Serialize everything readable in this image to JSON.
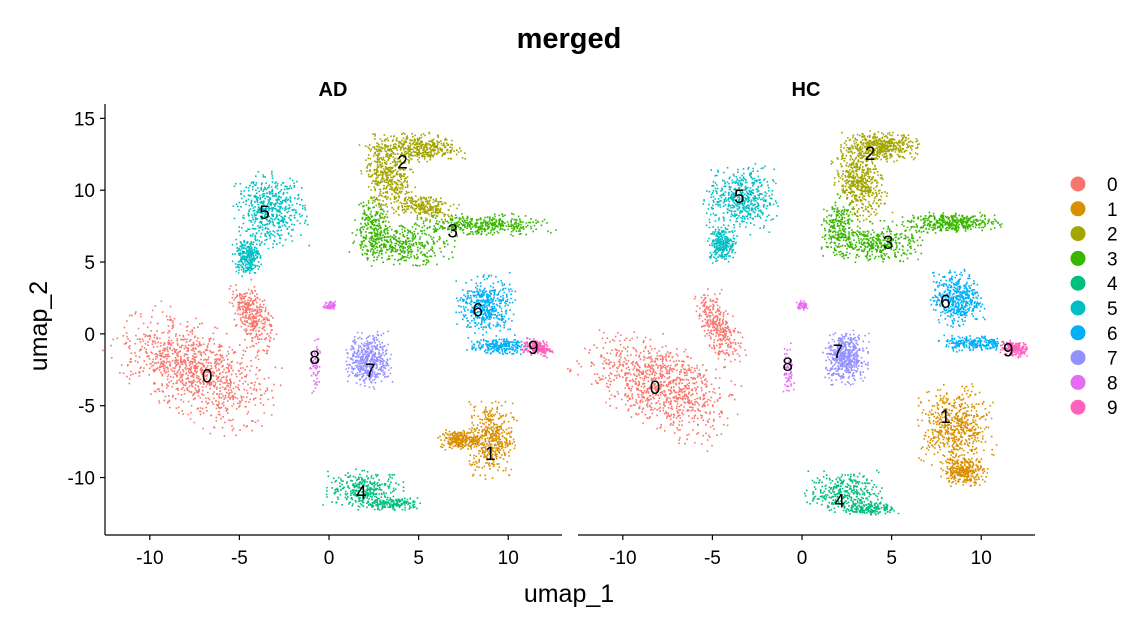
{
  "chart_data": {
    "type": "scatter",
    "title": "merged",
    "xlabel": "umap_1",
    "ylabel": "umap_2",
    "facets": [
      "AD",
      "HC"
    ],
    "xlim": [
      -12.5,
      13
    ],
    "ylim": [
      -14,
      16
    ],
    "x_ticks": [
      -10,
      -5,
      0,
      5,
      10
    ],
    "y_ticks": [
      -10,
      -5,
      0,
      5,
      10,
      15
    ],
    "x_tick_labels": [
      "-10",
      "-5",
      "0",
      "5",
      "10"
    ],
    "y_tick_labels": [
      "-10",
      "-5",
      "0",
      "5",
      "10",
      "15"
    ],
    "grid": false,
    "legend_position": "right",
    "legend_title": "",
    "clusters": [
      {
        "name": "0",
        "color": "#F8766D"
      },
      {
        "name": "1",
        "color": "#D89000"
      },
      {
        "name": "2",
        "color": "#A3A500"
      },
      {
        "name": "3",
        "color": "#39B600"
      },
      {
        "name": "4",
        "color": "#00BF7D"
      },
      {
        "name": "5",
        "color": "#00BFC4"
      },
      {
        "name": "6",
        "color": "#00B0F6"
      },
      {
        "name": "7",
        "color": "#9590FF"
      },
      {
        "name": "8",
        "color": "#E76BF3"
      },
      {
        "name": "9",
        "color": "#FF62BC"
      }
    ],
    "cluster_label_positions": {
      "AD": [
        {
          "label": "0",
          "x": -6.8,
          "y": -2.9
        },
        {
          "label": "1",
          "x": 9.0,
          "y": -8.3
        },
        {
          "label": "2",
          "x": 4.1,
          "y": 12.0
        },
        {
          "label": "3",
          "x": 6.9,
          "y": 7.2
        },
        {
          "label": "4",
          "x": 1.8,
          "y": -11.0
        },
        {
          "label": "5",
          "x": -3.6,
          "y": 8.5
        },
        {
          "label": "6",
          "x": 8.3,
          "y": 1.7
        },
        {
          "label": "7",
          "x": 2.3,
          "y": -2.5
        },
        {
          "label": "8",
          "x": -0.8,
          "y": -1.6
        },
        {
          "label": "9",
          "x": 11.4,
          "y": -0.9
        }
      ],
      "HC": [
        {
          "label": "0",
          "x": -8.2,
          "y": -3.7
        },
        {
          "label": "1",
          "x": 8.0,
          "y": -5.7
        },
        {
          "label": "2",
          "x": 3.8,
          "y": 12.6
        },
        {
          "label": "3",
          "x": 4.8,
          "y": 6.4
        },
        {
          "label": "4",
          "x": 2.1,
          "y": -11.6
        },
        {
          "label": "5",
          "x": -3.5,
          "y": 9.6
        },
        {
          "label": "6",
          "x": 8.0,
          "y": 2.3
        },
        {
          "label": "7",
          "x": 2.0,
          "y": -1.2
        },
        {
          "label": "8",
          "x": -0.8,
          "y": -2.1
        },
        {
          "label": "9",
          "x": 11.5,
          "y": -1.1
        }
      ]
    },
    "cluster_shapes": {
      "AD": [
        {
          "label": "0",
          "density": 1400,
          "parts": [
            {
              "cx": -7.5,
              "cy": -2.5,
              "rx": 2.6,
              "ry": 4.4,
              "rot": 52,
              "n": 3
            },
            {
              "cx": -4.3,
              "cy": 1.2,
              "rx": 0.9,
              "ry": 2.2,
              "rot": 18,
              "n": 1
            }
          ]
        },
        {
          "label": "1",
          "density": 700,
          "parts": [
            {
              "cx": 9.0,
              "cy": -7.2,
              "rx": 1.2,
              "ry": 2.4,
              "rot": 0,
              "n": 2
            },
            {
              "cx": 7.2,
              "cy": -7.3,
              "rx": 1.0,
              "ry": 0.6,
              "rot": 0,
              "n": 1
            }
          ]
        },
        {
          "label": "2",
          "density": 1100,
          "parts": [
            {
              "cx": 4.8,
              "cy": 13.0,
              "rx": 2.3,
              "ry": 0.9,
              "rot": 0,
              "n": 2
            },
            {
              "cx": 3.3,
              "cy": 10.8,
              "rx": 1.2,
              "ry": 2.4,
              "rot": 10,
              "n": 2
            },
            {
              "cx": 5.4,
              "cy": 8.9,
              "rx": 1.4,
              "ry": 0.7,
              "rot": -20,
              "n": 1
            }
          ]
        },
        {
          "label": "3",
          "density": 1000,
          "parts": [
            {
              "cx": 8.5,
              "cy": 7.6,
              "rx": 3.2,
              "ry": 0.7,
              "rot": 0,
              "n": 2
            },
            {
              "cx": 4.0,
              "cy": 6.3,
              "rx": 2.5,
              "ry": 1.3,
              "rot": 0,
              "n": 2
            },
            {
              "cx": 2.3,
              "cy": 7.5,
              "rx": 0.9,
              "ry": 1.8,
              "rot": 0,
              "n": 1
            }
          ]
        },
        {
          "label": "4",
          "density": 500,
          "parts": [
            {
              "cx": 2.0,
              "cy": -10.8,
              "rx": 2.0,
              "ry": 1.2,
              "rot": 0,
              "n": 2
            },
            {
              "cx": 3.5,
              "cy": -11.8,
              "rx": 1.5,
              "ry": 0.4,
              "rot": 0,
              "n": 1
            }
          ]
        },
        {
          "label": "5",
          "density": 800,
          "parts": [
            {
              "cx": -3.3,
              "cy": 8.6,
              "rx": 1.8,
              "ry": 2.3,
              "rot": 0,
              "n": 2
            },
            {
              "cx": -4.6,
              "cy": 5.5,
              "rx": 0.7,
              "ry": 1.2,
              "rot": 0,
              "n": 1
            }
          ]
        },
        {
          "label": "6",
          "density": 700,
          "parts": [
            {
              "cx": 8.7,
              "cy": 2.0,
              "rx": 1.4,
              "ry": 1.8,
              "rot": 0,
              "n": 2
            },
            {
              "cx": 9.4,
              "cy": -0.8,
              "rx": 1.6,
              "ry": 0.5,
              "rot": 0,
              "n": 1
            }
          ]
        },
        {
          "label": "7",
          "density": 500,
          "parts": [
            {
              "cx": 2.2,
              "cy": -1.8,
              "rx": 1.1,
              "ry": 1.7,
              "rot": 0,
              "n": 2
            }
          ]
        },
        {
          "label": "8",
          "density": 120,
          "parts": [
            {
              "cx": -0.8,
              "cy": -2.3,
              "rx": 0.25,
              "ry": 1.9,
              "rot": 0,
              "n": 1
            },
            {
              "cx": 0.0,
              "cy": 2.0,
              "rx": 0.3,
              "ry": 0.3,
              "rot": 0,
              "n": 1
            }
          ]
        },
        {
          "label": "9",
          "density": 200,
          "parts": [
            {
              "cx": 11.6,
              "cy": -0.9,
              "rx": 0.8,
              "ry": 0.5,
              "rot": -15,
              "n": 1
            }
          ]
        }
      ],
      "HC": [
        {
          "label": "0",
          "density": 1300,
          "parts": [
            {
              "cx": -8.0,
              "cy": -3.5,
              "rx": 2.4,
              "ry": 4.2,
              "rot": 50,
              "n": 3
            },
            {
              "cx": -4.7,
              "cy": 0.5,
              "rx": 0.9,
              "ry": 2.3,
              "rot": 20,
              "n": 1
            }
          ]
        },
        {
          "label": "1",
          "density": 900,
          "parts": [
            {
              "cx": 8.5,
              "cy": -6.5,
              "rx": 1.8,
              "ry": 2.6,
              "rot": 0,
              "n": 2
            },
            {
              "cx": 9.0,
              "cy": -9.5,
              "rx": 1.1,
              "ry": 0.9,
              "rot": 0,
              "n": 1
            }
          ]
        },
        {
          "label": "2",
          "density": 1000,
          "parts": [
            {
              "cx": 4.3,
              "cy": 13.1,
              "rx": 2.0,
              "ry": 0.9,
              "rot": 0,
              "n": 2
            },
            {
              "cx": 3.2,
              "cy": 10.5,
              "rx": 1.2,
              "ry": 2.2,
              "rot": 10,
              "n": 2
            }
          ]
        },
        {
          "label": "3",
          "density": 1000,
          "parts": [
            {
              "cx": 8.4,
              "cy": 7.8,
              "rx": 2.4,
              "ry": 0.6,
              "rot": 0,
              "n": 2
            },
            {
              "cx": 4.0,
              "cy": 6.4,
              "rx": 2.5,
              "ry": 1.3,
              "rot": 0,
              "n": 2
            },
            {
              "cx": 2.0,
              "cy": 7.6,
              "rx": 0.9,
              "ry": 1.8,
              "rot": 0,
              "n": 1
            }
          ]
        },
        {
          "label": "4",
          "density": 500,
          "parts": [
            {
              "cx": 2.3,
              "cy": -11.0,
              "rx": 1.9,
              "ry": 1.3,
              "rot": 0,
              "n": 2
            },
            {
              "cx": 3.8,
              "cy": -12.1,
              "rx": 1.3,
              "ry": 0.4,
              "rot": 0,
              "n": 1
            }
          ]
        },
        {
          "label": "5",
          "density": 800,
          "parts": [
            {
              "cx": -3.4,
              "cy": 9.4,
              "rx": 1.8,
              "ry": 2.1,
              "rot": 0,
              "n": 2
            },
            {
              "cx": -4.5,
              "cy": 6.3,
              "rx": 0.7,
              "ry": 1.1,
              "rot": 0,
              "n": 1
            }
          ]
        },
        {
          "label": "6",
          "density": 700,
          "parts": [
            {
              "cx": 8.6,
              "cy": 2.5,
              "rx": 1.3,
              "ry": 1.7,
              "rot": 0,
              "n": 2
            },
            {
              "cx": 9.5,
              "cy": -0.6,
              "rx": 1.6,
              "ry": 0.5,
              "rot": 0,
              "n": 1
            }
          ]
        },
        {
          "label": "7",
          "density": 500,
          "parts": [
            {
              "cx": 2.4,
              "cy": -1.6,
              "rx": 1.1,
              "ry": 1.6,
              "rot": 0,
              "n": 2
            }
          ]
        },
        {
          "label": "8",
          "density": 120,
          "parts": [
            {
              "cx": -0.8,
              "cy": -2.6,
              "rx": 0.25,
              "ry": 1.7,
              "rot": 0,
              "n": 1
            },
            {
              "cx": 0.0,
              "cy": 2.0,
              "rx": 0.3,
              "ry": 0.3,
              "rot": 0,
              "n": 1
            }
          ]
        },
        {
          "label": "9",
          "density": 200,
          "parts": [
            {
              "cx": 11.8,
              "cy": -1.0,
              "rx": 0.7,
              "ry": 0.5,
              "rot": -15,
              "n": 1
            }
          ]
        }
      ]
    }
  }
}
